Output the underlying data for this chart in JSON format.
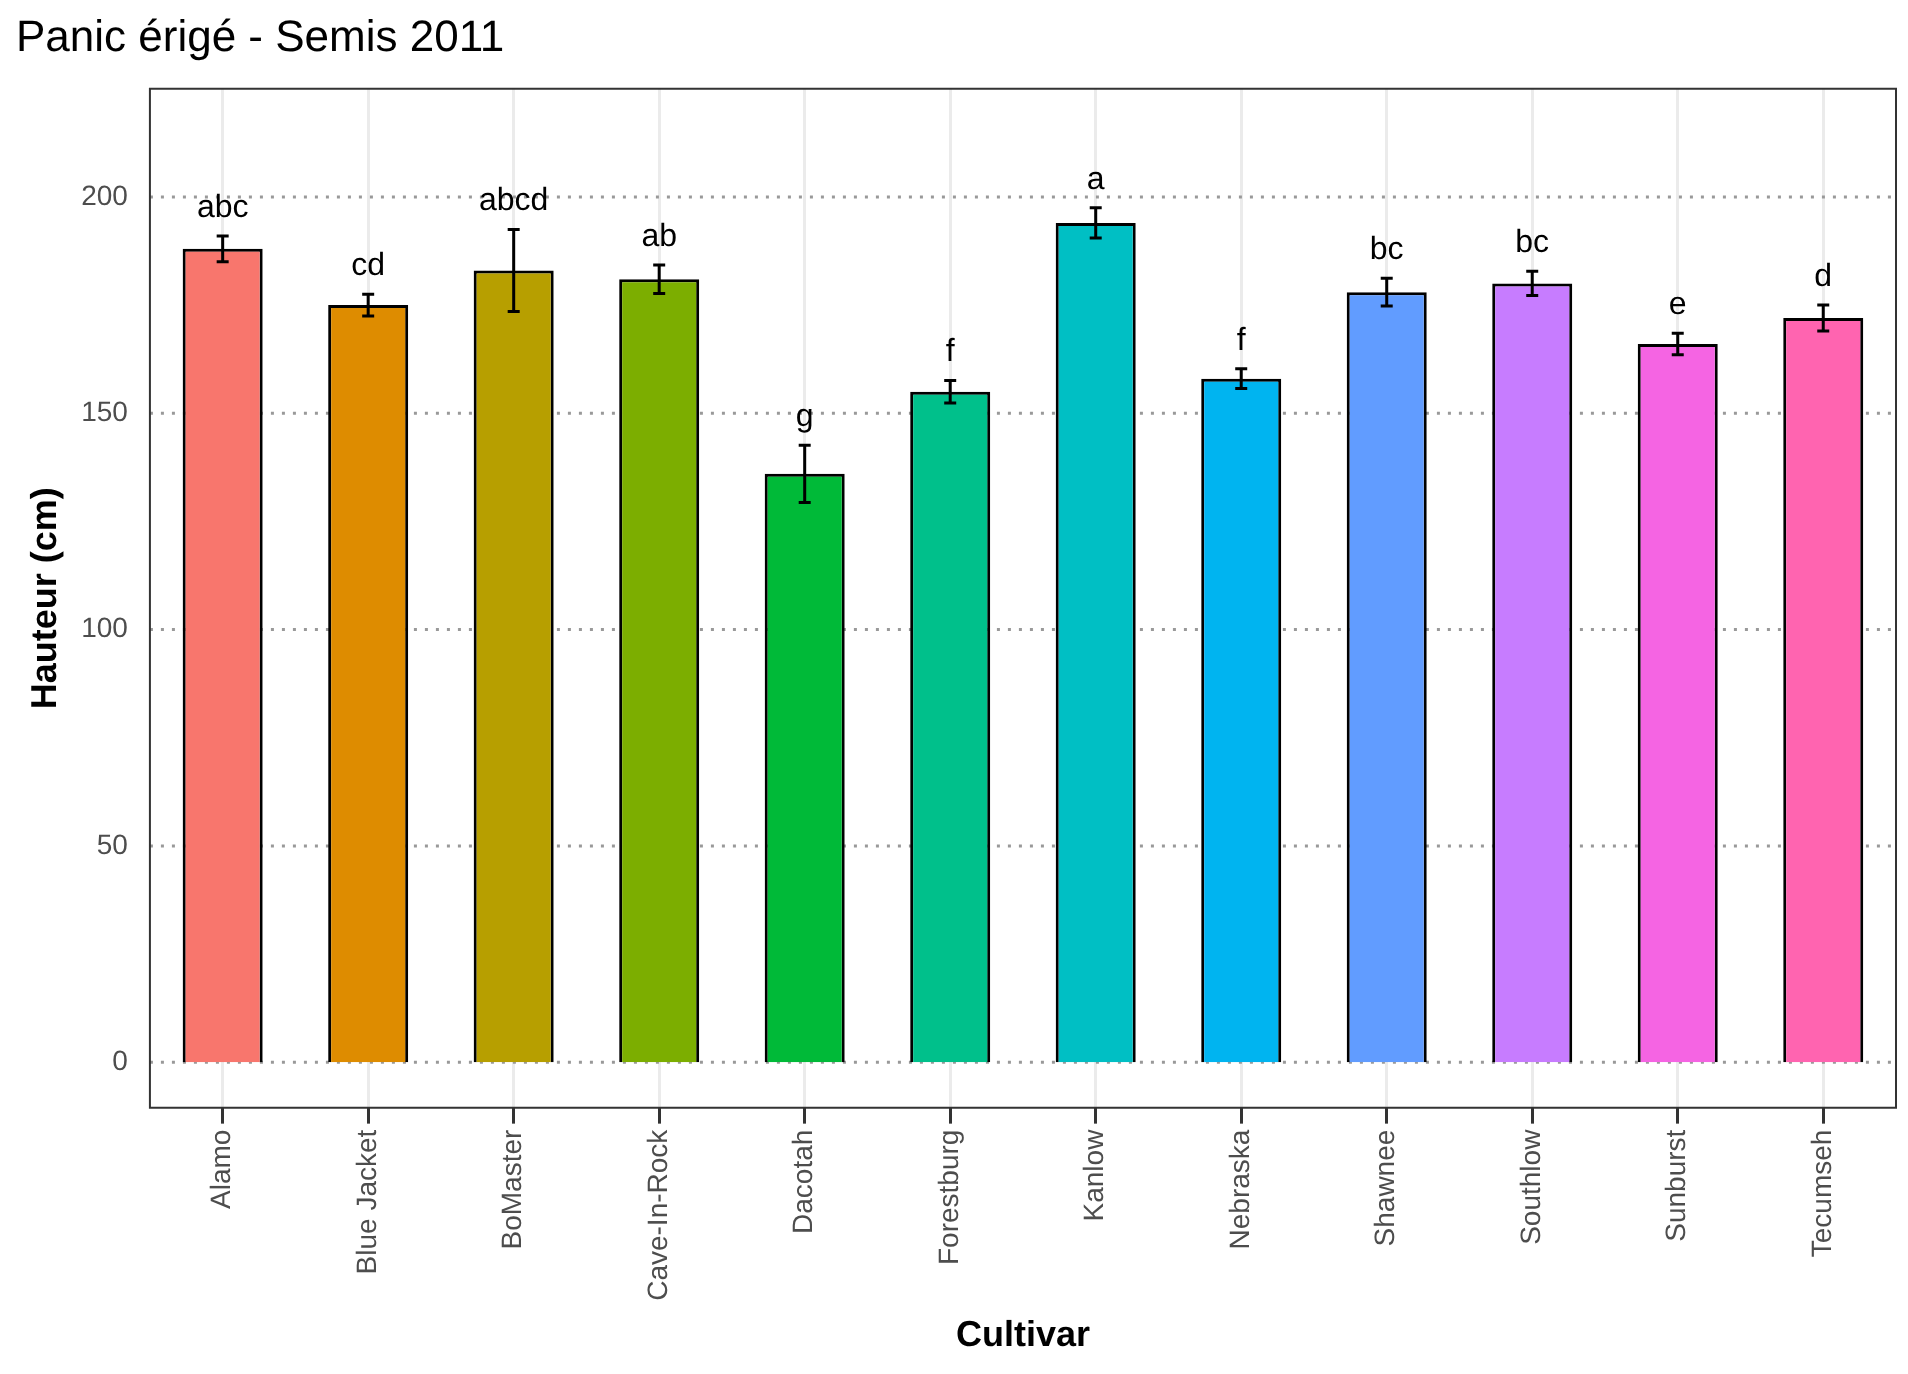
{
  "chart_data": {
    "type": "bar",
    "title": "Panic érigé - Semis 2011",
    "xlabel": "Cultivar",
    "ylabel": "Hauteur (cm)",
    "categories": [
      "Alamo",
      "Blue Jacket",
      "BoMaster",
      "Cave-In-Rock",
      "Dacotah",
      "Forestburg",
      "Kanlow",
      "Nebraska",
      "Shawnee",
      "Southlow",
      "Sunburst",
      "Tecumseh"
    ],
    "values": [
      188,
      175,
      183,
      181,
      136,
      155,
      194,
      158,
      178,
      180,
      166,
      172
    ],
    "errors": [
      3,
      2.5,
      9.5,
      3.3,
      6.6,
      2.6,
      3.5,
      2.3,
      3.2,
      2.8,
      2.5,
      3
    ],
    "colors": [
      "#f8766d",
      "#de8c00",
      "#b79f00",
      "#7cae00",
      "#00ba38",
      "#00c08b",
      "#00bfc4",
      "#00b4f0",
      "#619cff",
      "#c77cff",
      "#f564e3",
      "#ff64b0"
    ],
    "ylim": [
      -10.5,
      225
    ],
    "yticks": [
      0,
      50,
      100,
      150,
      200
    ],
    "grid": true,
    "legend": false,
    "annotations": [
      {
        "text": "abc",
        "x": "Alamo",
        "y": 191
      },
      {
        "text": "cd",
        "x": "Blue Jacket",
        "y": 177.5
      },
      {
        "text": "abcd",
        "x": "BoMaster",
        "y": 192.5
      },
      {
        "text": "ab",
        "x": "Cave-In-Rock",
        "y": 184.3
      },
      {
        "text": "g",
        "x": "Dacotah",
        "y": 142.6
      },
      {
        "text": "f",
        "x": "Forestburg",
        "y": 157.6
      },
      {
        "text": "a",
        "x": "Kanlow",
        "y": 197.5
      },
      {
        "text": "f",
        "x": "Nebraska",
        "y": 160.3
      },
      {
        "text": "bc",
        "x": "Shawnee",
        "y": 181.2
      },
      {
        "text": "bc",
        "x": "Southlow",
        "y": 182.8
      },
      {
        "text": "e",
        "x": "Sunburst",
        "y": 168.5
      },
      {
        "text": "d",
        "x": "Tecumseh",
        "y": 175
      }
    ]
  }
}
